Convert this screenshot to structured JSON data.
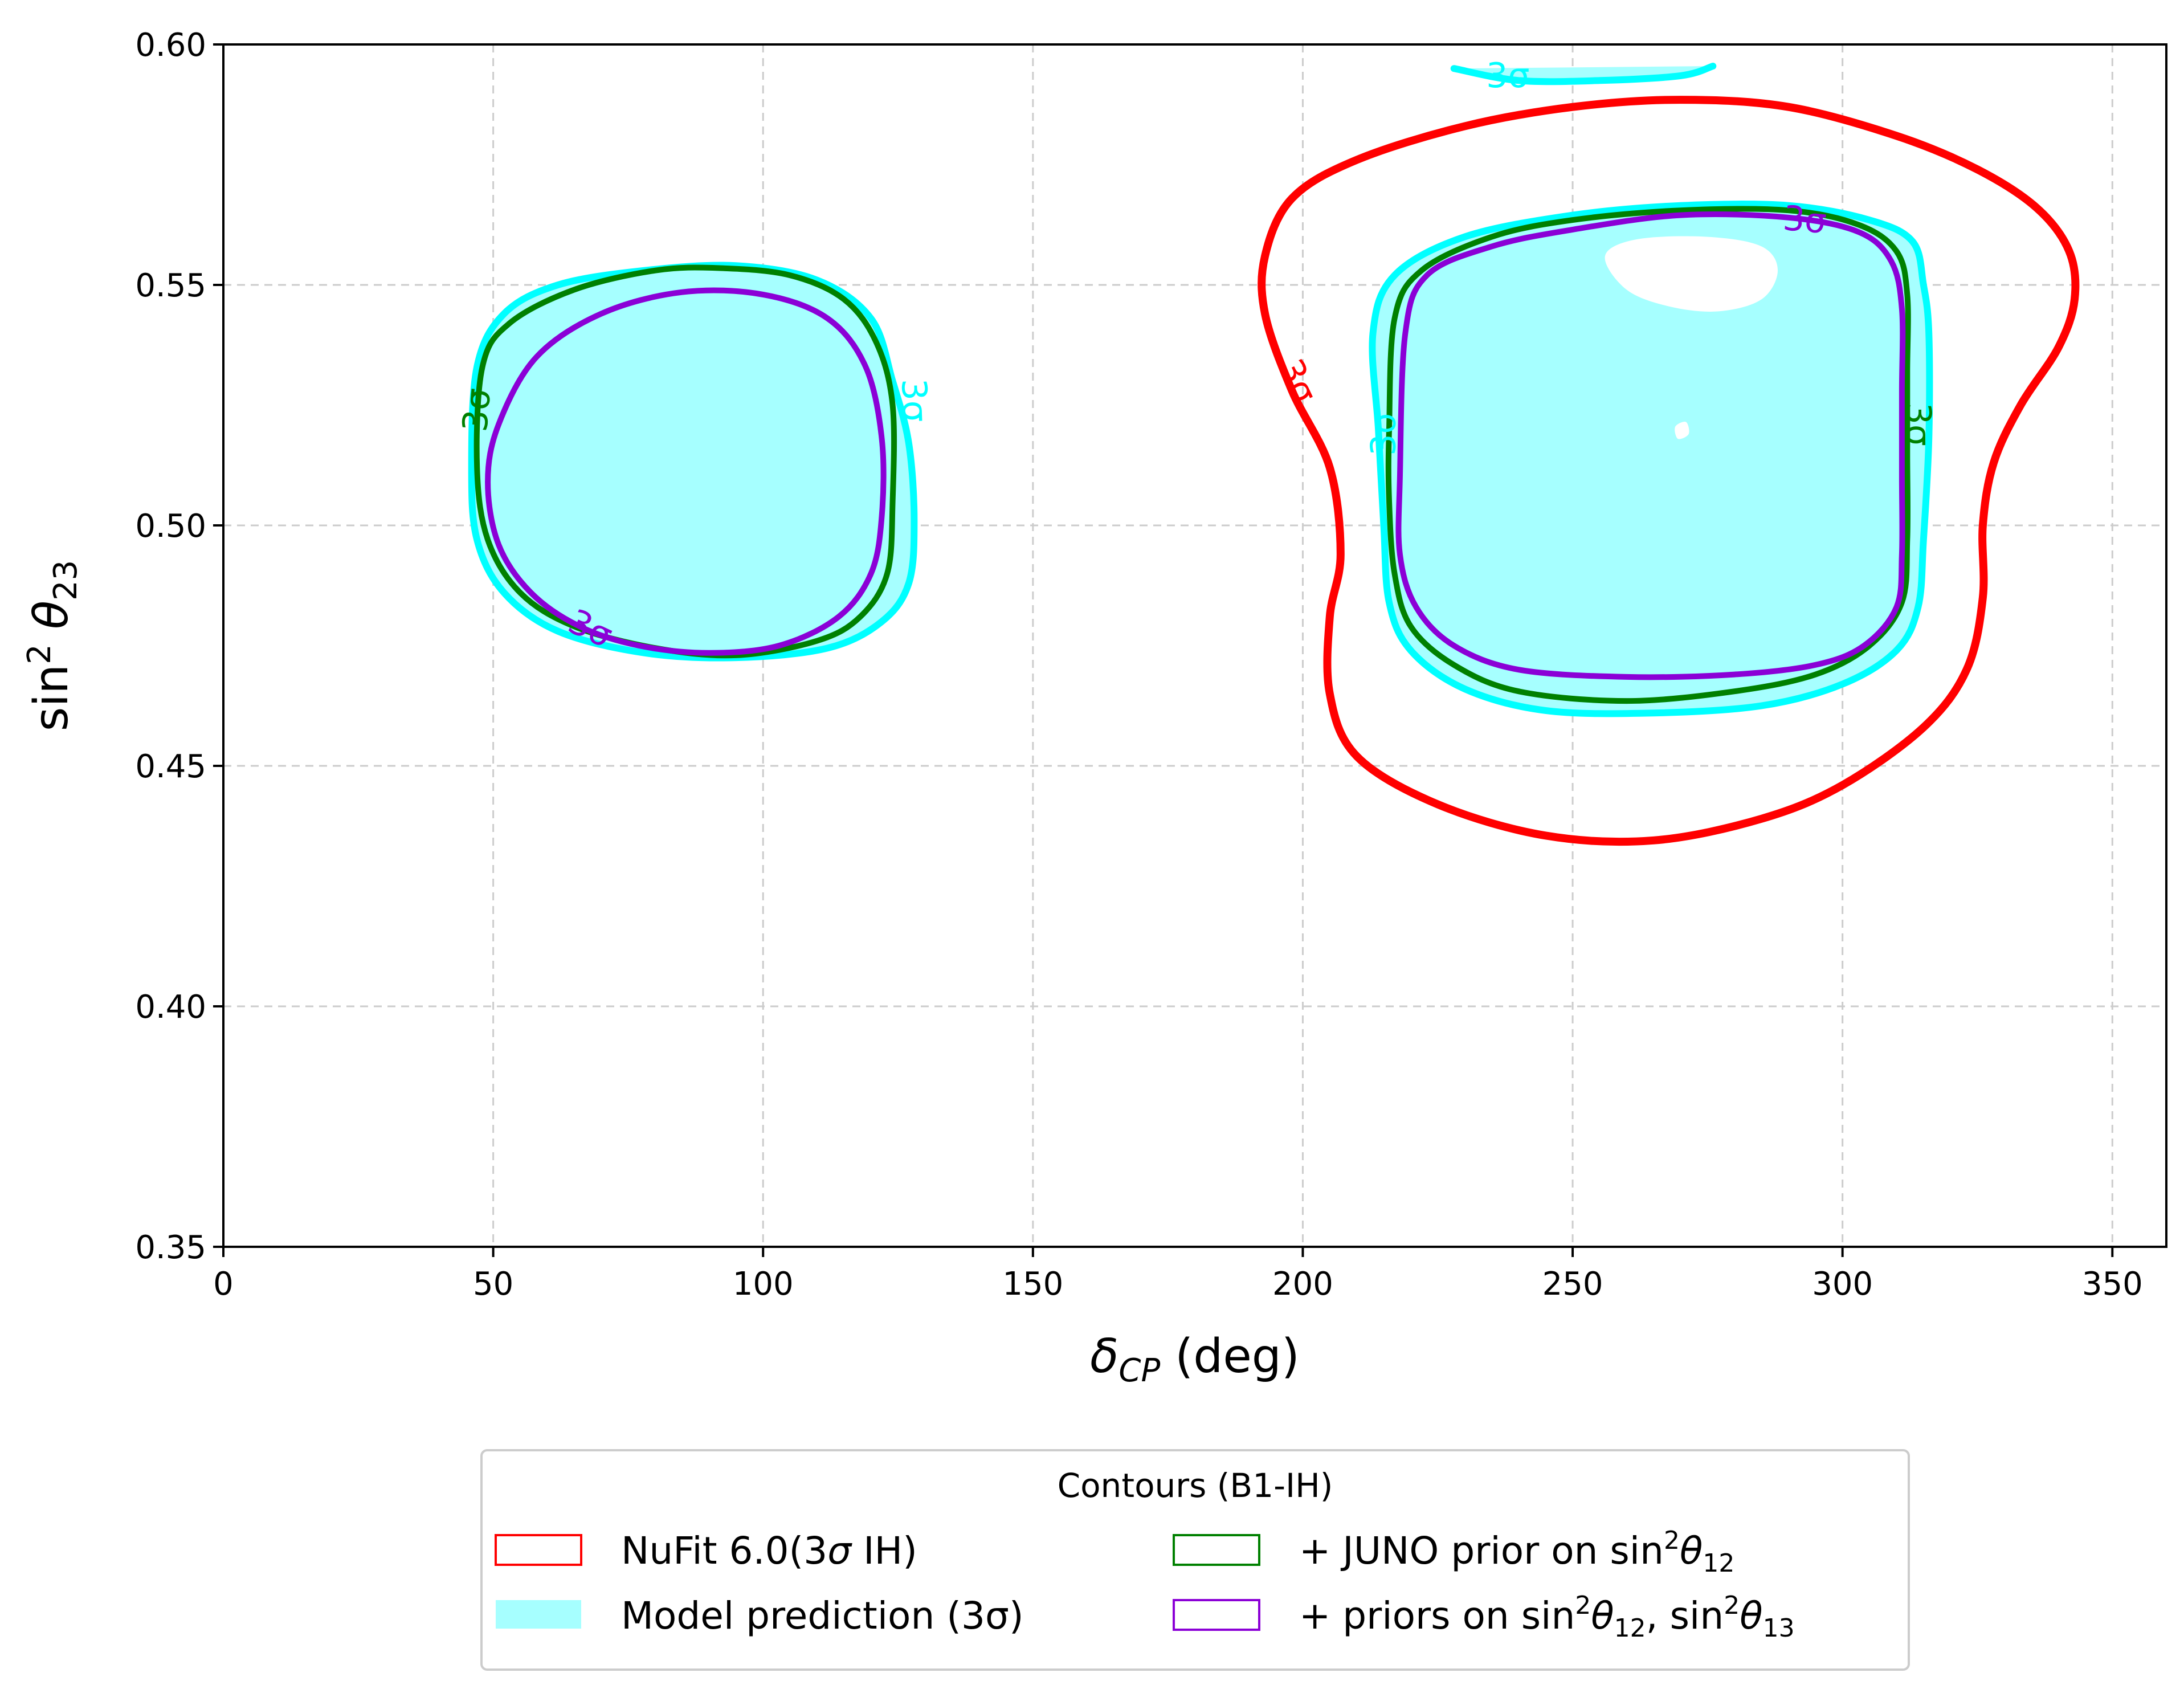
{
  "chart_data": {
    "type": "contour",
    "xlabel": {
      "main": "δ",
      "sub": "CP",
      "unit": " (deg)"
    },
    "ylabel": {
      "pre": "sin",
      "sup": "2",
      "theta": " θ",
      "sub": "23"
    },
    "xlim": [
      0,
      360
    ],
    "ylim": [
      0.35,
      0.6
    ],
    "xticks": [
      0,
      50,
      100,
      150,
      200,
      250,
      300,
      350
    ],
    "xtick_labels": [
      "0",
      "50",
      "100",
      "150",
      "200",
      "250",
      "300",
      "350"
    ],
    "yticks": [
      0.35,
      0.4,
      0.45,
      0.5,
      0.55,
      0.6
    ],
    "ytick_labels": [
      "0.35",
      "0.40",
      "0.45",
      "0.50",
      "0.55",
      "0.60"
    ],
    "grid": true,
    "legend": {
      "title": "Contours (B1-IH)",
      "placement": "below-center",
      "entries": [
        {
          "key": "nufit",
          "label": "NuFit 6.0(3σ IH)",
          "style": "outline",
          "color": "#ff0000"
        },
        {
          "key": "model",
          "label": "Model prediction (3σ)",
          "style": "fill",
          "color": "#a6ffff"
        },
        {
          "key": "juno",
          "label": "+ JUNO prior on sin²θ₁₂",
          "style": "outline",
          "color": "#008000"
        },
        {
          "key": "priors",
          "label": "+ priors on sin²θ₁₂, sin²θ₁₃",
          "style": "outline",
          "color": "#8b00d6"
        }
      ]
    },
    "contour_level_label": "3σ",
    "series": [
      {
        "key": "nufit",
        "color": "#ff0000",
        "fill": false,
        "regions": [
          [
            [
              193,
              0.556
            ],
            [
              198,
              0.568
            ],
            [
              210,
              0.576
            ],
            [
              230,
              0.583
            ],
            [
              250,
              0.587
            ],
            [
              270,
              0.5885
            ],
            [
              290,
              0.587
            ],
            [
              310,
              0.581
            ],
            [
              325,
              0.574
            ],
            [
              336,
              0.566
            ],
            [
              342,
              0.557
            ],
            [
              343,
              0.547
            ],
            [
              340,
              0.537
            ],
            [
              333,
              0.525
            ],
            [
              328,
              0.513
            ],
            [
              326,
              0.5
            ],
            [
              326,
              0.485
            ],
            [
              323,
              0.47
            ],
            [
              315,
              0.458
            ],
            [
              300,
              0.446
            ],
            [
              285,
              0.439
            ],
            [
              265,
              0.4345
            ],
            [
              245,
              0.4355
            ],
            [
              225,
              0.442
            ],
            [
              210,
              0.452
            ],
            [
              205,
              0.465
            ],
            [
              205,
              0.481
            ],
            [
              207,
              0.494
            ],
            [
              205,
              0.512
            ],
            [
              198,
              0.528
            ],
            [
              193,
              0.544
            ],
            [
              193,
              0.556
            ]
          ]
        ]
      },
      {
        "key": "model",
        "color": "#00ffff",
        "fill": true,
        "fill_color": "#a6ffff",
        "regions": [
          [
            [
              47,
              0.533
            ],
            [
              52,
              0.544
            ],
            [
              62,
              0.55
            ],
            [
              78,
              0.553
            ],
            [
              95,
              0.554
            ],
            [
              110,
              0.551
            ],
            [
              120,
              0.543
            ],
            [
              124,
              0.53
            ],
            [
              127,
              0.517
            ],
            [
              128,
              0.501
            ],
            [
              127,
              0.488
            ],
            [
              122,
              0.48
            ],
            [
              112,
              0.4745
            ],
            [
              95,
              0.4725
            ],
            [
              78,
              0.4735
            ],
            [
              62,
              0.478
            ],
            [
              52,
              0.486
            ],
            [
              47,
              0.497
            ],
            [
              46,
              0.512
            ],
            [
              47,
              0.533
            ]
          ],
          [
            [
              213,
              0.54
            ],
            [
              217,
              0.552
            ],
            [
              230,
              0.56
            ],
            [
              250,
              0.5645
            ],
            [
              270,
              0.5665
            ],
            [
              290,
              0.5665
            ],
            [
              305,
              0.5635
            ],
            [
              313,
              0.559
            ],
            [
              315,
              0.55
            ],
            [
              316,
              0.54
            ],
            [
              316,
              0.518
            ],
            [
              315,
              0.497
            ],
            [
              314,
              0.483
            ],
            [
              310,
              0.474
            ],
            [
              300,
              0.467
            ],
            [
              285,
              0.4625
            ],
            [
              265,
              0.461
            ],
            [
              245,
              0.4615
            ],
            [
              230,
              0.466
            ],
            [
              220,
              0.474
            ],
            [
              216,
              0.484
            ],
            [
              215,
              0.5
            ],
            [
              214,
              0.52
            ],
            [
              213,
              0.54
            ]
          ],
          [
            [
              228,
              0.595
            ],
            [
              240,
              0.5925
            ],
            [
              255,
              0.5925
            ],
            [
              270,
              0.5935
            ],
            [
              276,
              0.5955
            ]
          ]
        ]
      },
      {
        "key": "juno",
        "color": "#008000",
        "fill": false,
        "regions": [
          [
            [
              48,
              0.533
            ],
            [
              53,
              0.542
            ],
            [
              65,
              0.549
            ],
            [
              80,
              0.553
            ],
            [
              92,
              0.5535
            ],
            [
              105,
              0.552
            ],
            [
              115,
              0.547
            ],
            [
              121,
              0.538
            ],
            [
              124,
              0.525
            ],
            [
              124,
              0.505
            ],
            [
              123,
              0.49
            ],
            [
              118,
              0.481
            ],
            [
              110,
              0.476
            ],
            [
              95,
              0.473
            ],
            [
              80,
              0.4745
            ],
            [
              65,
              0.479
            ],
            [
              55,
              0.486
            ],
            [
              49,
              0.497
            ],
            [
              47,
              0.512
            ],
            [
              48,
              0.533
            ]
          ],
          [
            [
              217,
              0.543
            ],
            [
              222,
              0.553
            ],
            [
              235,
              0.56
            ],
            [
              250,
              0.5635
            ],
            [
              270,
              0.5655
            ],
            [
              290,
              0.5655
            ],
            [
              303,
              0.5625
            ],
            [
              310,
              0.557
            ],
            [
              312,
              0.548
            ],
            [
              312,
              0.532
            ],
            [
              312,
              0.515
            ],
            [
              312,
              0.497
            ],
            [
              311,
              0.484
            ],
            [
              305,
              0.475
            ],
            [
              295,
              0.469
            ],
            [
              280,
              0.4655
            ],
            [
              260,
              0.4635
            ],
            [
              240,
              0.4655
            ],
            [
              228,
              0.471
            ],
            [
              220,
              0.479
            ],
            [
              217,
              0.49
            ],
            [
              216,
              0.505
            ],
            [
              216,
              0.52
            ],
            [
              217,
              0.543
            ]
          ]
        ]
      },
      {
        "key": "priors",
        "color": "#8b00d6",
        "fill": false,
        "regions": [
          [
            [
              51,
              0.521
            ],
            [
              58,
              0.535
            ],
            [
              70,
              0.544
            ],
            [
              85,
              0.5485
            ],
            [
              100,
              0.548
            ],
            [
              112,
              0.543
            ],
            [
              119,
              0.533
            ],
            [
              122,
              0.518
            ],
            [
              122,
              0.502
            ],
            [
              120,
              0.49
            ],
            [
              114,
              0.481
            ],
            [
              103,
              0.475
            ],
            [
              90,
              0.4735
            ],
            [
              77,
              0.475
            ],
            [
              66,
              0.479
            ],
            [
              57,
              0.486
            ],
            [
              51,
              0.496
            ],
            [
              49,
              0.509
            ],
            [
              51,
              0.521
            ]
          ],
          [
            [
              219,
              0.54
            ],
            [
              223,
              0.552
            ],
            [
              235,
              0.558
            ],
            [
              250,
              0.5615
            ],
            [
              270,
              0.5645
            ],
            [
              290,
              0.564
            ],
            [
              303,
              0.561
            ],
            [
              309,
              0.555
            ],
            [
              311,
              0.545
            ],
            [
              311,
              0.528
            ],
            [
              311,
              0.51
            ],
            [
              311,
              0.494
            ],
            [
              310,
              0.483
            ],
            [
              304,
              0.475
            ],
            [
              295,
              0.471
            ],
            [
              280,
              0.469
            ],
            [
              260,
              0.4685
            ],
            [
              240,
              0.47
            ],
            [
              228,
              0.475
            ],
            [
              221,
              0.483
            ],
            [
              218,
              0.494
            ],
            [
              218,
              0.51
            ],
            [
              219,
              0.54
            ]
          ]
        ]
      }
    ],
    "holes": [
      {
        "color": "#ffffff",
        "points": [
          [
            256,
            0.556
          ],
          [
            262,
            0.5595
          ],
          [
            275,
            0.56
          ],
          [
            285,
            0.558
          ],
          [
            288,
            0.553
          ],
          [
            285,
            0.547
          ],
          [
            277,
            0.5445
          ],
          [
            268,
            0.5455
          ],
          [
            260,
            0.549
          ],
          [
            256,
            0.556
          ]
        ]
      },
      {
        "color": "#ffffff",
        "points": [
          [
            269,
            0.5205
          ],
          [
            271,
            0.5215
          ],
          [
            271.5,
            0.519
          ],
          [
            269.5,
            0.518
          ],
          [
            269,
            0.5205
          ]
        ]
      }
    ],
    "contour_labels": [
      {
        "series": "model",
        "text": "3σ",
        "x": 238,
        "y": 0.5935,
        "rot": 0
      },
      {
        "series": "nufit",
        "text": "3σ",
        "x": 199,
        "y": 0.53,
        "rot": 65
      },
      {
        "series": "model",
        "text": "3σ",
        "x": 215,
        "y": 0.519,
        "rot": -90
      },
      {
        "series": "juno",
        "text": "3σ",
        "x": 314,
        "y": 0.521,
        "rot": 90
      },
      {
        "series": "priors",
        "text": "3σ",
        "x": 293,
        "y": 0.5635,
        "rot": 5
      },
      {
        "series": "juno",
        "text": "3σ",
        "x": 47,
        "y": 0.524,
        "rot": -85
      },
      {
        "series": "model",
        "text": "3σ",
        "x": 128,
        "y": 0.526,
        "rot": 88
      },
      {
        "series": "priors",
        "text": "3σ",
        "x": 68,
        "y": 0.4785,
        "rot": 25
      }
    ]
  }
}
